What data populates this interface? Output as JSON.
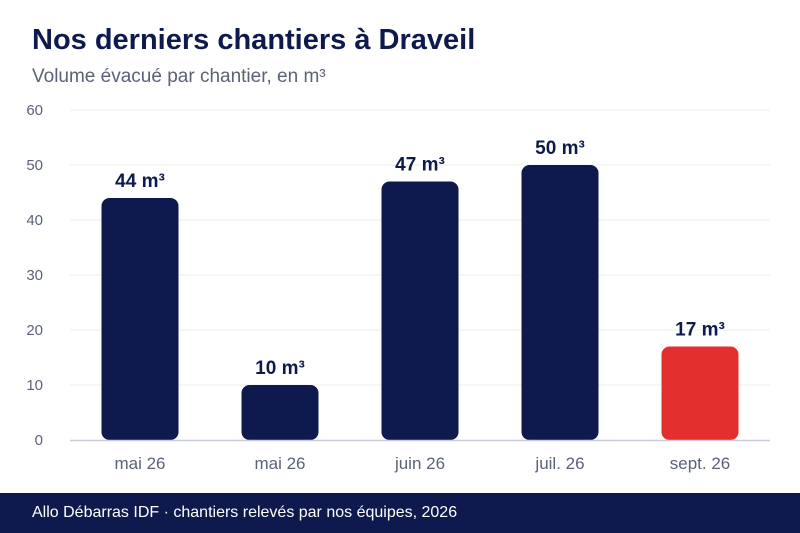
{
  "colors": {
    "primary": "#0e1a4d",
    "highlight": "#e3302f",
    "grid": "#ececf2",
    "axis": "#c9cbd6",
    "tick_text": "#5b6278"
  },
  "chart_data": {
    "type": "bar",
    "title": "Nos derniers chantiers à Draveil",
    "subtitle": "Volume évacué par chantier, en m³",
    "categories": [
      "mai 26",
      "mai 26",
      "juin 26",
      "juil. 26",
      "sept. 26"
    ],
    "values": [
      44,
      10,
      47,
      50,
      17
    ],
    "value_labels": [
      "44 m³",
      "10 m³",
      "47 m³",
      "50 m³",
      "17 m³"
    ],
    "highlight_index": 4,
    "ylim": [
      0,
      60
    ],
    "yticks": [
      0,
      10,
      20,
      30,
      40,
      50,
      60
    ],
    "grid": true,
    "xlabel": "",
    "ylabel": ""
  },
  "footer": {
    "text": "Allo Débarras IDF · chantiers relevés par nos équipes, 2026"
  }
}
